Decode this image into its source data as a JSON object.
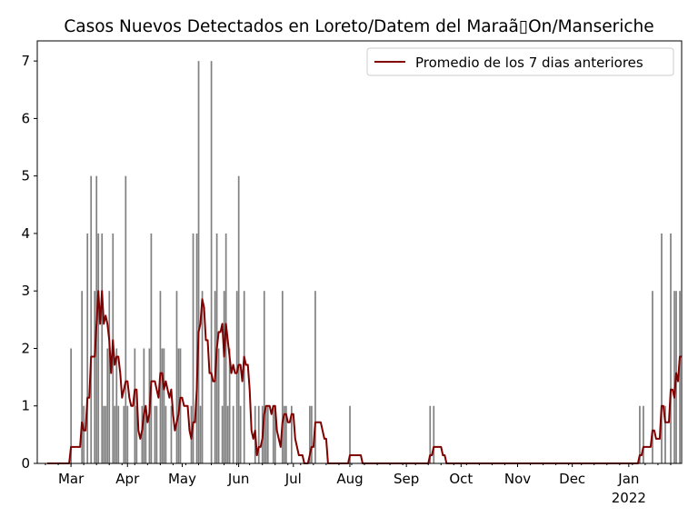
{
  "chart_data": {
    "type": "bar",
    "title": "Casos Nuevos Detectados en Loreto/Datem del Maraã▯On/Manseriche",
    "xlabel": "",
    "ylabel": "",
    "start_date": "2021-02-11",
    "num_days": 353,
    "ylim": [
      0,
      7.35
    ],
    "yticks": [
      "0",
      "1",
      "2",
      "3",
      "4",
      "5",
      "6",
      "7"
    ],
    "xticks": [
      {
        "day": 18,
        "label": "Mar"
      },
      {
        "day": 49,
        "label": "Apr"
      },
      {
        "day": 79,
        "label": "May"
      },
      {
        "day": 110,
        "label": "Jun"
      },
      {
        "day": 140,
        "label": "Jul"
      },
      {
        "day": 171,
        "label": "Aug"
      },
      {
        "day": 202,
        "label": "Sep"
      },
      {
        "day": 232,
        "label": "Oct"
      },
      {
        "day": 263,
        "label": "Nov"
      },
      {
        "day": 293,
        "label": "Dec"
      },
      {
        "day": 324,
        "label": "Jan",
        "sublabel": "2022"
      }
    ],
    "grid": false,
    "legend": {
      "position": "top-right",
      "entries": [
        "Promedio de los 7 dias anteriores"
      ]
    },
    "colors": {
      "bars": "#808080",
      "line": "#800000"
    },
    "daily_cases_nonzero": [
      [
        18,
        2
      ],
      [
        24,
        3
      ],
      [
        25,
        1
      ],
      [
        27,
        4
      ],
      [
        29,
        5
      ],
      [
        31,
        3
      ],
      [
        32,
        5
      ],
      [
        33,
        4
      ],
      [
        35,
        4
      ],
      [
        36,
        1
      ],
      [
        37,
        1
      ],
      [
        38,
        2
      ],
      [
        39,
        3
      ],
      [
        41,
        4
      ],
      [
        42,
        1
      ],
      [
        43,
        2
      ],
      [
        44,
        1
      ],
      [
        47,
        1
      ],
      [
        48,
        5
      ],
      [
        49,
        1
      ],
      [
        53,
        2
      ],
      [
        54,
        1
      ],
      [
        57,
        1
      ],
      [
        58,
        2
      ],
      [
        59,
        1
      ],
      [
        61,
        2
      ],
      [
        62,
        4
      ],
      [
        64,
        1
      ],
      [
        65,
        1
      ],
      [
        67,
        3
      ],
      [
        68,
        2
      ],
      [
        69,
        2
      ],
      [
        70,
        1
      ],
      [
        73,
        1
      ],
      [
        76,
        3
      ],
      [
        77,
        2
      ],
      [
        78,
        2
      ],
      [
        84,
        1
      ],
      [
        85,
        4
      ],
      [
        87,
        4
      ],
      [
        88,
        7
      ],
      [
        89,
        1
      ],
      [
        90,
        3
      ],
      [
        95,
        7
      ],
      [
        97,
        3
      ],
      [
        98,
        4
      ],
      [
        99,
        2
      ],
      [
        101,
        1
      ],
      [
        102,
        3
      ],
      [
        103,
        4
      ],
      [
        104,
        1
      ],
      [
        105,
        2
      ],
      [
        107,
        1
      ],
      [
        109,
        3
      ],
      [
        110,
        5
      ],
      [
        111,
        1
      ],
      [
        113,
        3
      ],
      [
        119,
        1
      ],
      [
        121,
        1
      ],
      [
        123,
        1
      ],
      [
        124,
        3
      ],
      [
        125,
        1
      ],
      [
        126,
        1
      ],
      [
        129,
        1
      ],
      [
        130,
        1
      ],
      [
        134,
        3
      ],
      [
        135,
        1
      ],
      [
        136,
        1
      ],
      [
        139,
        1
      ],
      [
        149,
        1
      ],
      [
        150,
        1
      ],
      [
        152,
        3
      ],
      [
        171,
        1
      ],
      [
        215,
        1
      ],
      [
        217,
        1
      ],
      [
        330,
        1
      ],
      [
        332,
        1
      ],
      [
        337,
        3
      ],
      [
        342,
        4
      ],
      [
        344,
        1
      ],
      [
        347,
        4
      ],
      [
        349,
        3
      ],
      [
        350,
        3
      ],
      [
        352,
        3
      ]
    ]
  }
}
